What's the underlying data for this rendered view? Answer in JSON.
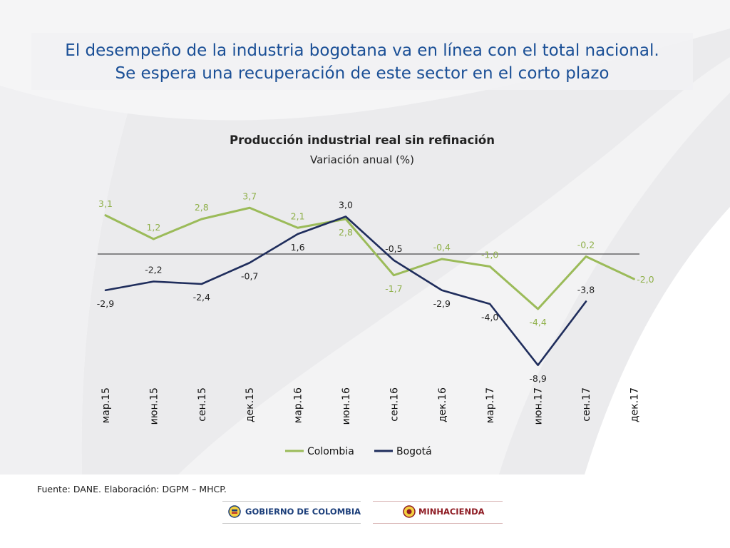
{
  "headline": {
    "line1": "El desempeño de la industria bogotana va en línea con el total nacional.",
    "line2": "Se espera una recuperación de este sector en el corto plazo"
  },
  "chart_data": {
    "type": "line",
    "title": "Producción industrial real sin refinación",
    "subtitle": "Variación anual (%)",
    "categories": [
      "мар.15",
      "июн.15",
      "сен.15",
      "дек.15",
      "мар.16",
      "июн.16",
      "сен.16",
      "дек.16",
      "мар.17",
      "июн.17",
      "сен.17",
      "дек.17"
    ],
    "series": [
      {
        "name": "Colombia",
        "color": "#9bbb59",
        "values": [
          3.1,
          1.2,
          2.8,
          3.7,
          2.1,
          2.8,
          -1.7,
          -0.4,
          -1.0,
          -4.4,
          -0.2,
          -2.0
        ],
        "labels": [
          "3,1",
          "1,2",
          "2,8",
          "3,7",
          "2,1",
          "2,8",
          "-1,7",
          "-0,4",
          "-1,0",
          "-4,4",
          "-0,2",
          "-2,0"
        ]
      },
      {
        "name": "Bogotá",
        "color": "#1f2d5c",
        "values": [
          -2.9,
          -2.2,
          -2.4,
          -0.7,
          1.6,
          3.0,
          -0.5,
          -2.9,
          -4.0,
          -8.9,
          -3.8,
          null
        ],
        "labels": [
          "-2,9",
          "-2,2",
          "-2,4",
          "-0,7",
          "1,6",
          "3,0",
          "-0,5",
          "-2,9",
          "-4,0",
          "-8,9",
          "-3,8",
          null
        ]
      }
    ],
    "legend_position": "bottom",
    "zero_line": true,
    "grid": false
  },
  "footer": {
    "source": "Fuente: DANE. Elaboración: DGPM – MHCP.",
    "logo_left": "GOBIERNO DE COLOMBIA",
    "logo_right": "MINHACIENDA"
  }
}
